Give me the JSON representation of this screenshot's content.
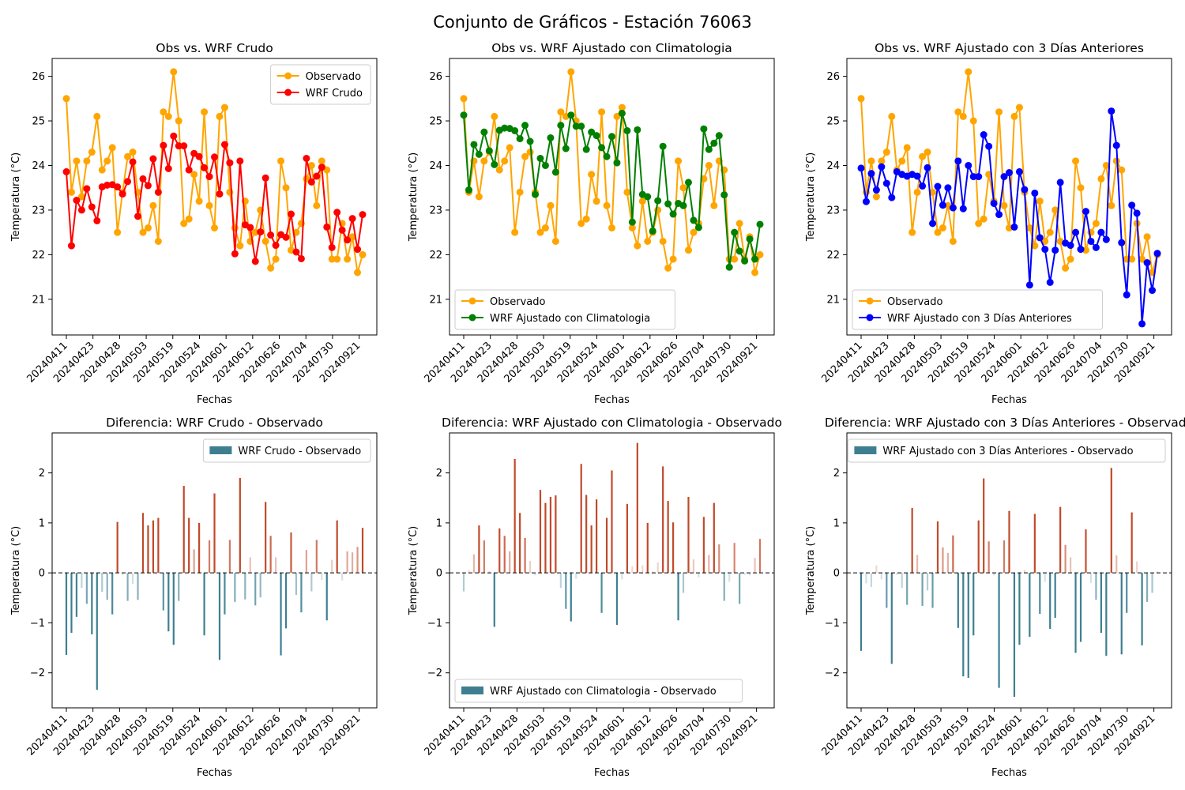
{
  "suptitle": "Conjunto de Gráficos - Estación 76063",
  "colors": {
    "observed": "#FFA500",
    "wrf_crudo": "#FF0000",
    "wrf_clim": "#008000",
    "wrf_3d": "#0000FF",
    "neg_bar": "#3D7F91",
    "pos_bar": "#C04A2A"
  },
  "chart_data": [
    {
      "type": "line",
      "title": "Obs vs. WRF Crudo",
      "xlabel": "Fechas",
      "ylabel": "Temperatura (°C)",
      "ylim": [
        20.2,
        26.4
      ],
      "yticks": [
        21,
        22,
        23,
        24,
        25,
        26
      ],
      "xtick_labels": [
        "20240411",
        "20240423",
        "20240428",
        "20240503",
        "20240519",
        "20240524",
        "20240601",
        "20240612",
        "20240626",
        "20240704",
        "20240730",
        "20240921"
      ],
      "legend_position": "top-right",
      "series": [
        {
          "name": "Observado",
          "color": "#FFA500",
          "values": [
            25.5,
            23.4,
            24.1,
            23.3,
            24.1,
            24.3,
            25.1,
            23.9,
            24.1,
            24.4,
            22.5,
            23.4,
            24.2,
            24.3,
            23.4,
            22.5,
            22.6,
            23.1,
            22.3,
            25.2,
            25.1,
            26.1,
            25.0,
            22.7,
            22.8,
            23.8,
            23.2,
            25.2,
            23.1,
            22.6,
            25.1,
            25.3,
            23.4,
            22.6,
            22.2,
            23.2,
            22.3,
            22.5,
            23.0,
            22.3,
            21.7,
            21.9,
            24.1,
            23.5,
            22.1,
            22.5,
            22.7,
            23.7,
            24.0,
            23.1,
            24.1,
            23.9,
            21.9,
            21.9,
            22.7,
            21.9,
            22.4,
            21.6,
            22.0
          ]
        },
        {
          "name": "WRF Crudo",
          "color": "#FF0000",
          "values": [
            23.86,
            22.2,
            23.22,
            23.0,
            23.48,
            23.07,
            22.76,
            23.52,
            23.56,
            23.57,
            23.52,
            23.36,
            23.64,
            24.08,
            22.86,
            23.7,
            23.55,
            24.15,
            23.4,
            24.45,
            23.93,
            24.66,
            24.44,
            24.44,
            23.9,
            24.27,
            24.2,
            23.95,
            23.75,
            24.19,
            23.36,
            24.47,
            24.06,
            22.02,
            24.1,
            22.67,
            22.61,
            21.85,
            22.51,
            23.72,
            22.44,
            22.21,
            22.45,
            22.39,
            22.91,
            22.06,
            21.91,
            24.16,
            23.63,
            23.76,
            23.96,
            22.62,
            22.16,
            22.95,
            22.55,
            22.33,
            22.81,
            22.12,
            22.9
          ]
        }
      ]
    },
    {
      "type": "line",
      "title": "Obs vs. WRF Ajustado con Climatologia",
      "xlabel": "Fechas",
      "ylabel": "Temperatura (°C)",
      "ylim": [
        20.2,
        26.4
      ],
      "yticks": [
        21,
        22,
        23,
        24,
        25,
        26
      ],
      "xtick_labels": [
        "20240411",
        "20240423",
        "20240428",
        "20240503",
        "20240519",
        "20240524",
        "20240601",
        "20240612",
        "20240626",
        "20240704",
        "20240730",
        "20240921"
      ],
      "legend_position": "bottom-left",
      "series": [
        {
          "name": "Observado",
          "color": "#FFA500",
          "values": [
            25.5,
            23.4,
            24.1,
            23.3,
            24.1,
            24.3,
            25.1,
            23.9,
            24.1,
            24.4,
            22.5,
            23.4,
            24.2,
            24.3,
            23.4,
            22.5,
            22.6,
            23.1,
            22.3,
            25.2,
            25.1,
            26.1,
            25.0,
            22.7,
            22.8,
            23.8,
            23.2,
            25.2,
            23.1,
            22.6,
            25.1,
            25.3,
            23.4,
            22.6,
            22.2,
            23.2,
            22.3,
            22.5,
            23.0,
            22.3,
            21.7,
            21.9,
            24.1,
            23.5,
            22.1,
            22.5,
            22.7,
            23.7,
            24.0,
            23.1,
            24.1,
            23.9,
            21.9,
            21.9,
            22.7,
            21.9,
            22.4,
            21.6,
            22.0
          ]
        },
        {
          "name": "WRF Ajustado con Climatologia",
          "color": "#008000",
          "values": [
            25.13,
            23.45,
            24.47,
            24.25,
            24.75,
            24.33,
            24.02,
            24.79,
            24.84,
            24.83,
            24.78,
            24.6,
            24.9,
            24.54,
            23.35,
            24.16,
            24.0,
            24.62,
            23.85,
            24.9,
            24.38,
            25.13,
            24.88,
            24.88,
            24.36,
            24.75,
            24.67,
            24.4,
            24.2,
            24.65,
            24.06,
            25.17,
            24.78,
            22.73,
            24.8,
            23.35,
            23.3,
            22.53,
            23.21,
            24.43,
            23.14,
            22.91,
            23.15,
            23.1,
            23.62,
            22.77,
            22.61,
            24.82,
            24.36,
            24.5,
            24.67,
            23.34,
            21.72,
            22.5,
            22.08,
            21.86,
            22.35,
            21.9,
            22.68
          ]
        }
      ]
    },
    {
      "type": "line",
      "title": "Obs vs. WRF Ajustado con 3 Días Anteriores",
      "xlabel": "Fechas",
      "ylabel": "Temperatura (°C)",
      "ylim": [
        20.2,
        26.4
      ],
      "yticks": [
        21,
        22,
        23,
        24,
        25,
        26
      ],
      "xtick_labels": [
        "20240411",
        "20240423",
        "20240428",
        "20240503",
        "20240519",
        "20240524",
        "20240601",
        "20240612",
        "20240626",
        "20240704",
        "20240730",
        "20240921"
      ],
      "legend_position": "bottom-left",
      "series": [
        {
          "name": "Observado",
          "color": "#FFA500",
          "values": [
            25.5,
            23.4,
            24.1,
            23.3,
            24.1,
            24.3,
            25.1,
            23.9,
            24.1,
            24.4,
            22.5,
            23.4,
            24.2,
            24.3,
            23.4,
            22.5,
            22.6,
            23.1,
            22.3,
            25.2,
            25.1,
            26.1,
            25.0,
            22.7,
            22.8,
            23.8,
            23.2,
            25.2,
            23.1,
            22.6,
            25.1,
            25.3,
            23.4,
            22.6,
            22.2,
            23.2,
            22.3,
            22.5,
            23.0,
            22.3,
            21.7,
            21.9,
            24.1,
            23.5,
            22.1,
            22.5,
            22.7,
            23.7,
            24.0,
            23.1,
            24.1,
            23.9,
            21.9,
            21.9,
            22.7,
            21.9,
            22.4,
            21.6,
            22.0
          ]
        },
        {
          "name": "WRF Ajustado con 3 Días Anteriores",
          "color": "#0000FF",
          "values": [
            23.94,
            23.19,
            23.82,
            23.45,
            23.97,
            23.6,
            23.28,
            23.86,
            23.8,
            23.76,
            23.8,
            23.76,
            23.54,
            23.95,
            22.7,
            23.53,
            23.11,
            23.5,
            23.05,
            24.1,
            23.03,
            24.0,
            23.75,
            23.75,
            24.69,
            24.43,
            23.15,
            22.9,
            23.75,
            23.84,
            22.62,
            23.86,
            23.46,
            21.32,
            23.38,
            22.38,
            22.12,
            21.38,
            22.1,
            23.62,
            22.26,
            22.21,
            22.5,
            22.12,
            22.97,
            22.3,
            22.16,
            22.5,
            22.34,
            25.22,
            24.45,
            22.27,
            21.1,
            23.11,
            22.93,
            20.45,
            21.82,
            21.2,
            22.03
          ]
        }
      ]
    },
    {
      "type": "bar",
      "title": "Diferencia: WRF Crudo - Observado",
      "xlabel": "Fechas",
      "ylabel": "Temperatura (°C)",
      "ylim": [
        -2.7,
        2.8
      ],
      "yticks": [
        -2,
        -1,
        0,
        1,
        2
      ],
      "xtick_labels": [
        "20240411",
        "20240423",
        "20240428",
        "20240503",
        "20240519",
        "20240524",
        "20240601",
        "20240612",
        "20240626",
        "20240704",
        "20240730",
        "20240921"
      ],
      "legend_position": "top-right",
      "legend": "WRF Crudo - Observado",
      "values": [
        -1.64,
        -1.2,
        -0.88,
        -0.3,
        -0.62,
        -1.23,
        -2.34,
        -0.38,
        -0.54,
        -0.83,
        1.02,
        -0.04,
        -0.56,
        -0.22,
        -0.54,
        1.2,
        0.95,
        1.05,
        1.1,
        -0.75,
        -1.17,
        -1.44,
        -0.56,
        1.74,
        1.1,
        0.47,
        1.0,
        -1.25,
        0.65,
        1.59,
        -1.74,
        -0.83,
        0.66,
        -0.58,
        1.9,
        -0.53,
        0.31,
        -0.65,
        -0.49,
        1.42,
        0.74,
        0.31,
        -1.65,
        -1.11,
        0.81,
        -0.44,
        -0.79,
        0.46,
        -0.37,
        0.66,
        -0.14,
        -0.95,
        0.26,
        1.05,
        -0.15,
        0.43,
        0.41,
        0.52,
        0.9
      ]
    },
    {
      "type": "bar",
      "title": "Diferencia: WRF Ajustado con Climatologia - Observado",
      "xlabel": "Fechas",
      "ylabel": "Temperatura (°C)",
      "ylim": [
        -2.7,
        2.8
      ],
      "yticks": [
        -2,
        -1,
        0,
        1,
        2
      ],
      "xtick_labels": [
        "20240411",
        "20240423",
        "20240428",
        "20240503",
        "20240519",
        "20240524",
        "20240601",
        "20240612",
        "20240626",
        "20240704",
        "20240730",
        "20240921"
      ],
      "legend_position": "bottom-left",
      "legend": "WRF Ajustado con Climatologia - Observado",
      "values": [
        -0.37,
        0.05,
        0.37,
        0.95,
        0.65,
        0.03,
        -1.08,
        0.89,
        0.74,
        0.43,
        2.28,
        1.2,
        0.7,
        0.24,
        -0.05,
        1.66,
        1.4,
        1.52,
        1.55,
        -0.3,
        -0.72,
        -0.97,
        -0.12,
        2.18,
        1.56,
        0.95,
        1.47,
        -0.8,
        1.1,
        2.05,
        -1.04,
        -0.13,
        1.38,
        0.13,
        2.6,
        0.15,
        1.0,
        0.03,
        0.21,
        2.13,
        1.44,
        1.01,
        -0.95,
        -0.4,
        1.52,
        0.27,
        -0.09,
        1.12,
        0.36,
        1.4,
        0.57,
        -0.56,
        -0.18,
        0.6,
        -0.62,
        -0.04,
        -0.05,
        0.3,
        0.68
      ]
    },
    {
      "type": "bar",
      "title": "Diferencia: WRF Ajustado con 3 Días Anteriores - Observado",
      "xlabel": "Fechas",
      "ylabel": "Temperatura (°C)",
      "ylim": [
        -2.7,
        2.8
      ],
      "yticks": [
        -2,
        -1,
        0,
        1,
        2
      ],
      "xtick_labels": [
        "20240411",
        "20240423",
        "20240428",
        "20240503",
        "20240519",
        "20240524",
        "20240601",
        "20240612",
        "20240626",
        "20240704",
        "20240730",
        "20240921"
      ],
      "legend_position": "top-right",
      "legend": "WRF Ajustado con 3 Días Anteriores - Observado",
      "values": [
        -1.56,
        -0.21,
        -0.28,
        0.15,
        -0.13,
        -0.7,
        -1.82,
        -0.04,
        -0.3,
        -0.64,
        1.3,
        0.36,
        -0.66,
        -0.35,
        -0.7,
        1.03,
        0.51,
        0.4,
        0.75,
        -1.1,
        -2.07,
        -2.1,
        -1.25,
        1.05,
        1.89,
        0.63,
        -0.05,
        -2.3,
        0.65,
        1.24,
        -2.48,
        -1.44,
        0.06,
        -1.28,
        1.18,
        -0.82,
        -0.18,
        -1.12,
        -0.9,
        1.32,
        0.56,
        0.31,
        -1.6,
        -1.38,
        0.87,
        -0.2,
        -0.54,
        -1.2,
        -1.66,
        2.1,
        0.35,
        -1.63,
        -0.8,
        1.21,
        0.23,
        -1.45,
        -0.58,
        -0.4,
        0.03
      ]
    }
  ]
}
